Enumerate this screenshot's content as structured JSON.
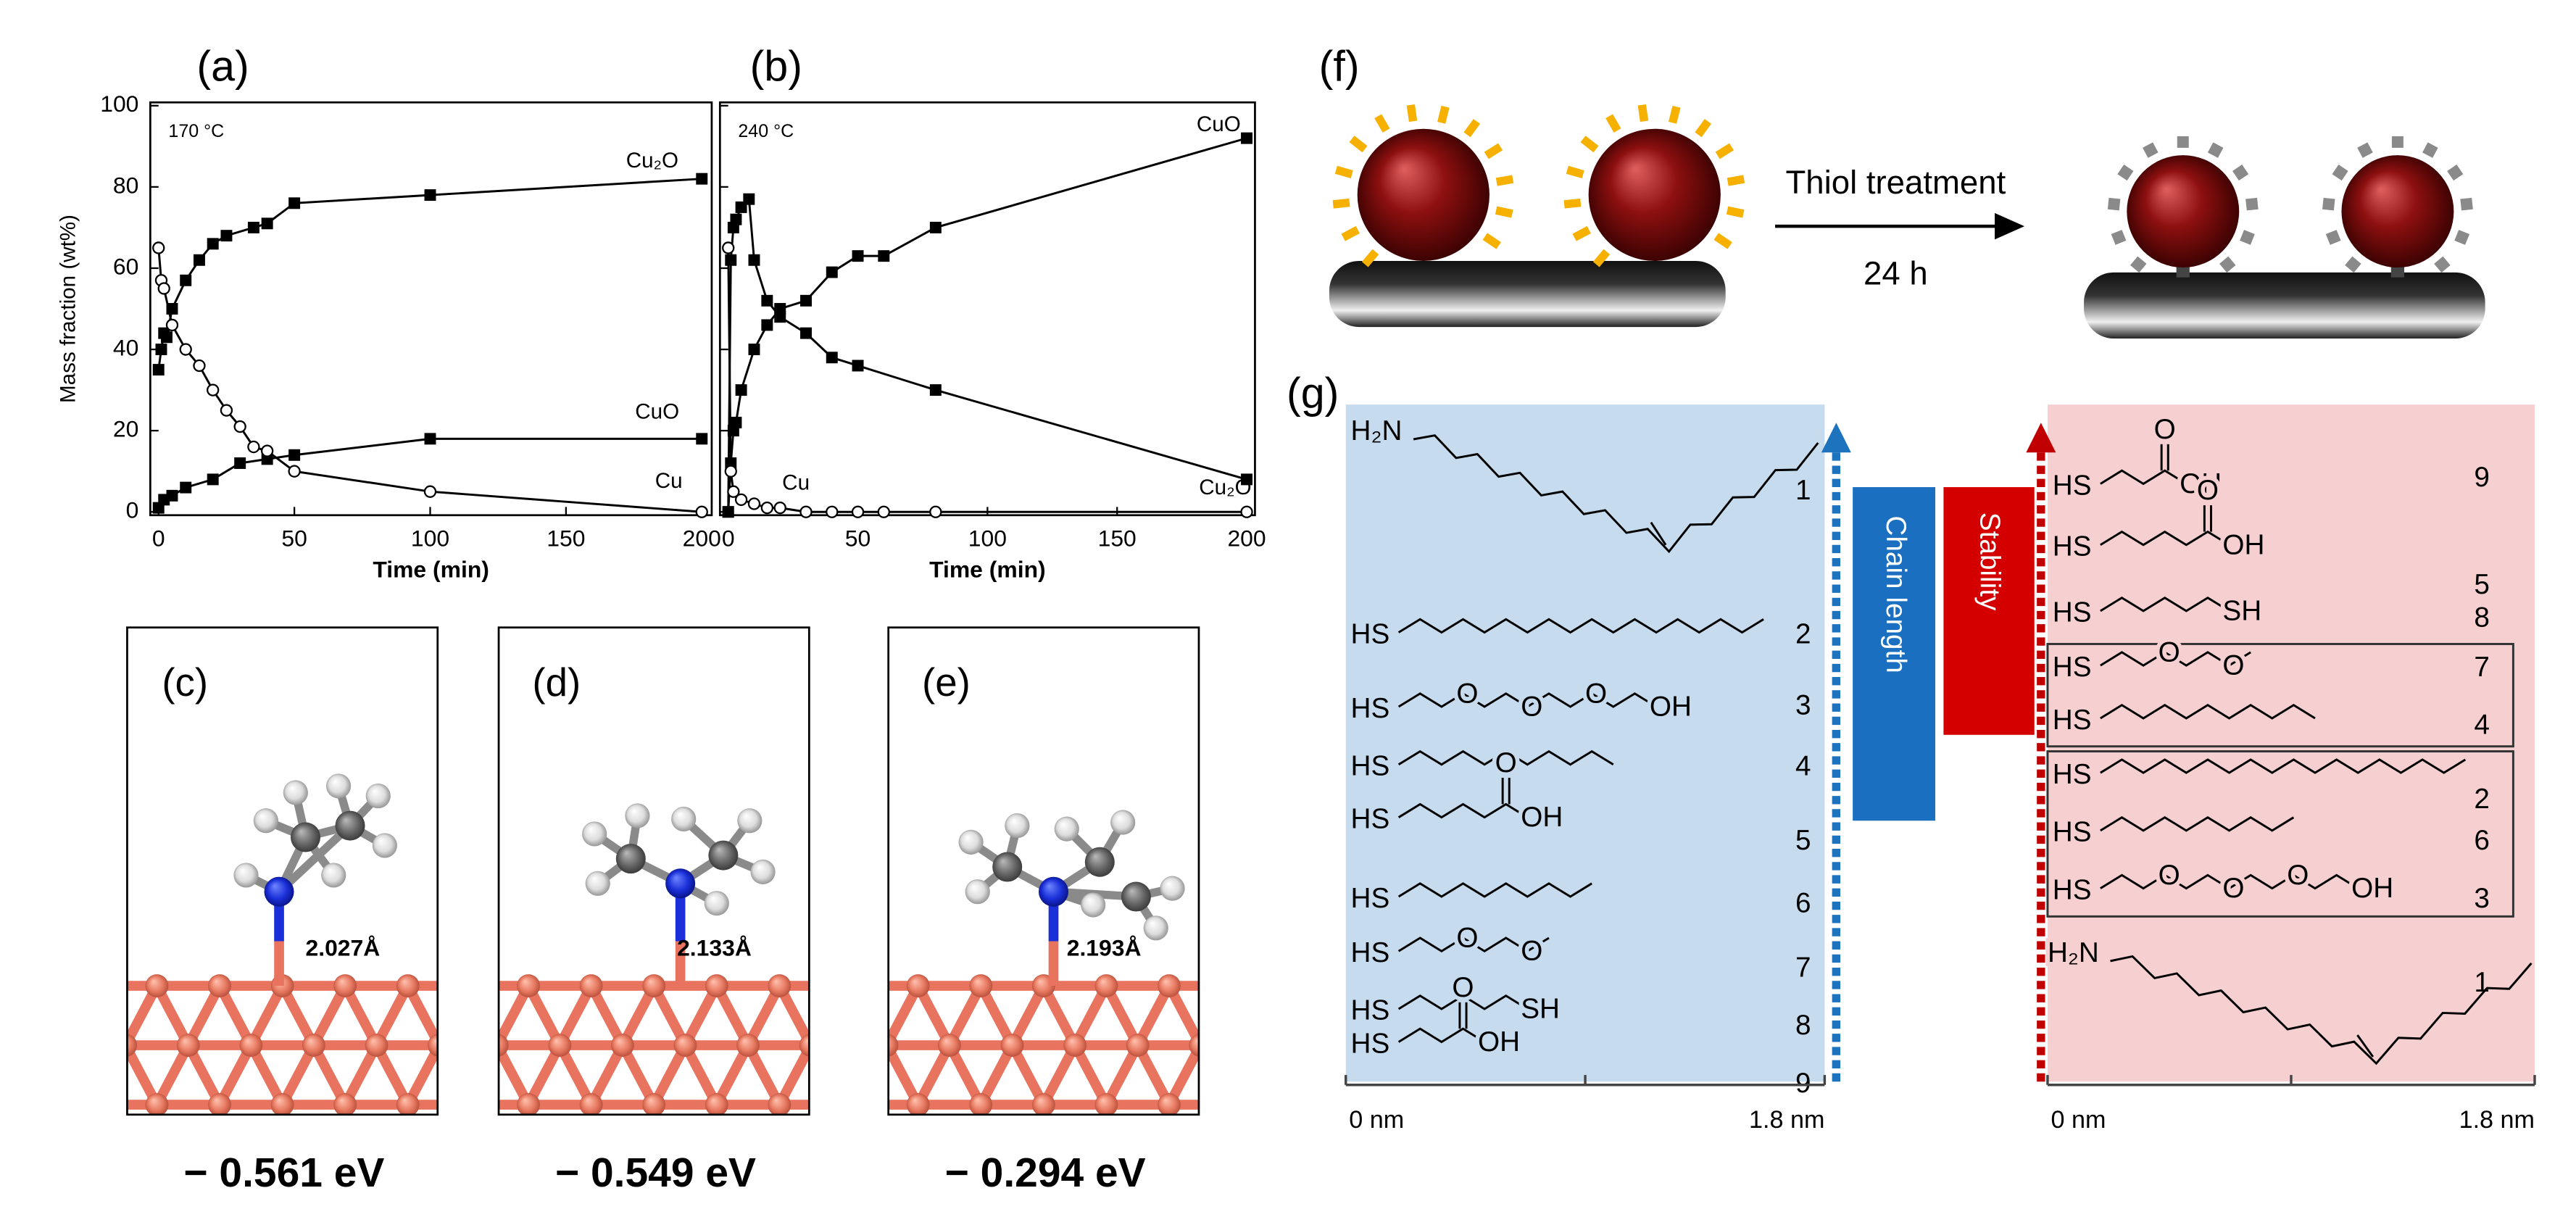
{
  "chart_data": [
    {
      "type": "scatter",
      "label": "(a)",
      "annotation": "170 °C",
      "ylabel": "Mass fraction (wt%)",
      "xlabel": "Time (min)",
      "xlim": [
        0,
        200
      ],
      "ylim": [
        0,
        100
      ],
      "xticks": [
        0,
        50,
        100,
        150,
        200
      ],
      "yticks": [
        0,
        20,
        40,
        60,
        80,
        100
      ],
      "ytick_labels": true,
      "series": [
        {
          "name": "Cu₂O",
          "color": "#000000",
          "marker": "square",
          "x": [
            0,
            1,
            2,
            3,
            5,
            10,
            15,
            20,
            25,
            35,
            40,
            50,
            100,
            200
          ],
          "values": [
            35,
            40,
            44,
            43,
            50,
            57,
            62,
            66,
            68,
            70,
            71,
            76,
            78,
            82
          ]
        },
        {
          "name": "CuO",
          "color": "#000000",
          "marker": "square",
          "x": [
            0,
            2,
            5,
            10,
            20,
            30,
            40,
            50,
            100,
            200
          ],
          "values": [
            1,
            3,
            4,
            6,
            8,
            12,
            13,
            14,
            18,
            18
          ]
        },
        {
          "name": "Cu",
          "color": "#000000",
          "marker": "open-circle",
          "x": [
            0,
            1,
            2,
            5,
            10,
            15,
            20,
            25,
            30,
            35,
            40,
            50,
            100,
            200
          ],
          "values": [
            65,
            57,
            55,
            46,
            40,
            36,
            30,
            25,
            21,
            16,
            15,
            10,
            5,
            0
          ]
        }
      ]
    },
    {
      "type": "scatter",
      "label": "(b)",
      "annotation": "240 °C",
      "xlabel": "Time (min)",
      "xlim": [
        0,
        200
      ],
      "ylim": [
        0,
        100
      ],
      "xticks": [
        0,
        50,
        100,
        150,
        200
      ],
      "yticks": [
        0,
        20,
        40,
        60,
        80,
        100
      ],
      "ytick_labels": false,
      "series": [
        {
          "name": "Cu₂O",
          "color": "#000000",
          "marker": "square",
          "x": [
            0,
            1,
            2,
            3,
            5,
            8,
            10,
            15,
            20,
            30,
            40,
            50,
            80,
            200
          ],
          "values": [
            0,
            62,
            70,
            72,
            75,
            77,
            62,
            52,
            48,
            44,
            38,
            36,
            30,
            8
          ]
        },
        {
          "name": "CuO",
          "color": "#000000",
          "marker": "square",
          "x": [
            0,
            1,
            2,
            3,
            5,
            10,
            15,
            20,
            30,
            40,
            50,
            60,
            80,
            200
          ],
          "values": [
            0,
            12,
            20,
            22,
            30,
            40,
            46,
            50,
            52,
            59,
            63,
            63,
            70,
            92
          ]
        },
        {
          "name": "Cu",
          "color": "#000000",
          "marker": "open-circle",
          "x": [
            0,
            1,
            2,
            5,
            10,
            15,
            20,
            30,
            40,
            50,
            60,
            80,
            200
          ],
          "values": [
            65,
            10,
            5,
            3,
            2,
            1,
            1,
            0,
            0,
            0,
            0,
            0,
            0
          ]
        }
      ]
    }
  ],
  "panels": [
    {
      "label": "(c)",
      "bond": "2.027Å",
      "energy": "− 0.561 eV"
    },
    {
      "label": "(d)",
      "bond": "2.133Å",
      "energy": "− 0.549  eV"
    },
    {
      "label": "(e)",
      "bond": "2.193Å",
      "energy": "− 0.294 eV"
    }
  ],
  "panel_f": {
    "label": "(f)",
    "arrow_text": "Thiol treatment",
    "time": "24 h"
  },
  "panel_g": {
    "label": "(g)",
    "chain_length": "Chain length",
    "stability": "Stability",
    "left": {
      "scale": [
        "0 nm",
        "1.8 nm"
      ],
      "molecules": [
        {
          "number": 1,
          "groups": [
            "H₂N"
          ]
        },
        {
          "number": 2,
          "groups": [
            "HS"
          ]
        },
        {
          "number": 3,
          "groups": [
            "HS",
            "O",
            "O",
            "O",
            "OH"
          ]
        },
        {
          "number": 4,
          "groups": [
            "HS"
          ]
        },
        {
          "number": 5,
          "groups": [
            "HS",
            "O",
            "OH"
          ]
        },
        {
          "number": 6,
          "groups": [
            "HS"
          ]
        },
        {
          "number": 7,
          "groups": [
            "HS",
            "O",
            "O"
          ]
        },
        {
          "number": 8,
          "groups": [
            "HS",
            "SH"
          ]
        },
        {
          "number": 9,
          "groups": [
            "HS",
            "O",
            "OH"
          ]
        }
      ]
    },
    "right": {
      "scale": [
        "0 nm",
        "1.8 nm"
      ],
      "molecules": [
        {
          "number": 9,
          "groups": [
            "HS",
            "O",
            "OH"
          ]
        },
        {
          "number": 5,
          "groups": [
            "HS",
            "O",
            "OH"
          ]
        },
        {
          "number": 8,
          "groups": [
            "HS",
            "SH"
          ]
        },
        {
          "number": 7,
          "groups": [
            "HS",
            "O",
            "O"
          ]
        },
        {
          "number": 4,
          "groups": [
            "HS"
          ]
        },
        {
          "number": 2,
          "groups": [
            "HS"
          ]
        },
        {
          "number": 6,
          "groups": [
            "HS"
          ]
        },
        {
          "number": 3,
          "groups": [
            "HS",
            "O",
            "O",
            "O",
            "OH"
          ]
        },
        {
          "number": 1,
          "groups": [
            "H₂N"
          ]
        }
      ]
    }
  }
}
